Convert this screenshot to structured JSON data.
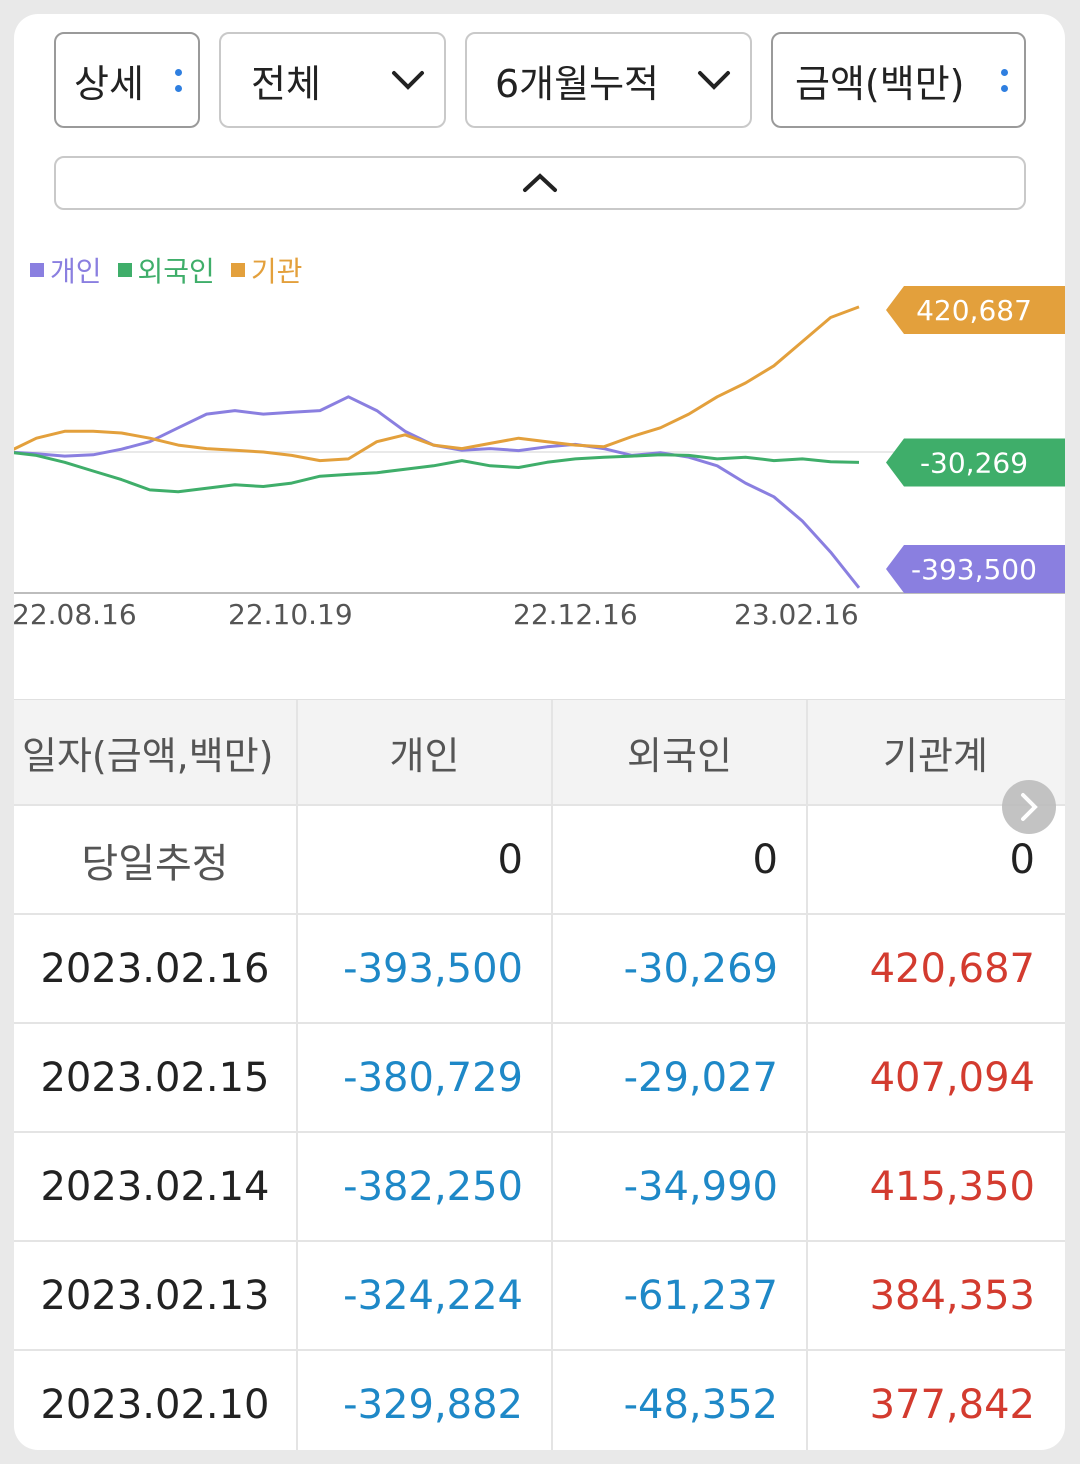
{
  "filters": {
    "detail": "상세",
    "scope": "전체",
    "period": "6개월누적",
    "unit": "금액(백만)"
  },
  "legend": [
    {
      "label": "개인",
      "color": "#8a7fe0"
    },
    {
      "label": "외국인",
      "color": "#3fae6a"
    },
    {
      "label": "기관",
      "color": "#e3a03c"
    }
  ],
  "chart_data": {
    "type": "line",
    "x_ticks": [
      "22.08.16",
      "22.10.19",
      "22.12.16",
      "23.02.16"
    ],
    "series": [
      {
        "name": "개인",
        "color": "#8a7fe0",
        "last_value": "-393,500",
        "values": [
          0,
          -5000,
          -12000,
          -8000,
          8000,
          30000,
          70000,
          110000,
          120000,
          110000,
          115000,
          120000,
          160000,
          120000,
          60000,
          20000,
          5000,
          10000,
          4000,
          15000,
          22000,
          10000,
          -10000,
          -2000,
          -15000,
          -40000,
          -90000,
          -130000,
          -200000,
          -290000,
          -393500
        ]
      },
      {
        "name": "외국인",
        "color": "#3fae6a",
        "last_value": "-30,269",
        "values": [
          0,
          -10000,
          -30000,
          -55000,
          -80000,
          -110000,
          -115000,
          -105000,
          -95000,
          -100000,
          -90000,
          -70000,
          -65000,
          -60000,
          -50000,
          -40000,
          -25000,
          -40000,
          -45000,
          -30000,
          -20000,
          -15000,
          -12000,
          -8000,
          -10000,
          -20000,
          -15000,
          -25000,
          -20000,
          -28000,
          -30269
        ]
      },
      {
        "name": "기관",
        "color": "#e3a03c",
        "last_value": "420,687",
        "values": [
          0,
          40000,
          60000,
          60000,
          55000,
          40000,
          20000,
          10000,
          5000,
          0,
          -10000,
          -25000,
          -20000,
          30000,
          50000,
          20000,
          10000,
          25000,
          40000,
          30000,
          20000,
          15000,
          45000,
          70000,
          110000,
          160000,
          200000,
          250000,
          320000,
          390000,
          420687
        ]
      }
    ]
  },
  "table": {
    "headers": [
      "일자(금액,백만)",
      "개인",
      "외국인",
      "기관계"
    ],
    "estimate": {
      "label": "당일추정",
      "values": [
        "0",
        "0",
        "0"
      ]
    },
    "rows": [
      {
        "date": "2023.02.16",
        "individual": "-393,500",
        "foreign": "-30,269",
        "institution": "420,687"
      },
      {
        "date": "2023.02.15",
        "individual": "-380,729",
        "foreign": "-29,027",
        "institution": "407,094"
      },
      {
        "date": "2023.02.14",
        "individual": "-382,250",
        "foreign": "-34,990",
        "institution": "415,350"
      },
      {
        "date": "2023.02.13",
        "individual": "-324,224",
        "foreign": "-61,237",
        "institution": "384,353"
      },
      {
        "date": "2023.02.10",
        "individual": "-329,882",
        "foreign": "-48,352",
        "institution": "377,842"
      }
    ]
  }
}
